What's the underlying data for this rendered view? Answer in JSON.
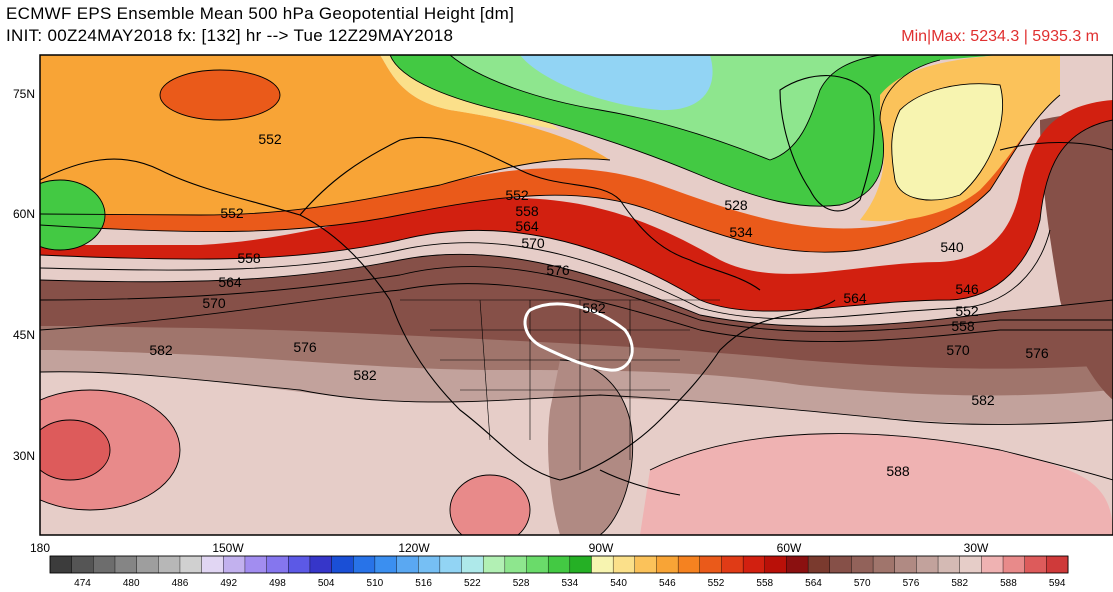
{
  "header": {
    "title_line1": "ECMWF EPS Ensemble Mean 500 hPa Geopotential Height [dm]",
    "title_line2": "INIT: 00Z24MAY2018 fx: [132] hr --> Tue 12Z29MAY2018",
    "minmax": "Min|Max: 5234.3 | 5935.3 m"
  },
  "map": {
    "lon_labels": [
      "180",
      "150W",
      "120W",
      "90W",
      "60W",
      "30W"
    ],
    "lat_labels": [
      "75N",
      "60N",
      "45N",
      "30N"
    ],
    "contour_labels": [
      "552",
      "552",
      "558",
      "564",
      "570",
      "582",
      "576",
      "582",
      "552",
      "558",
      "564",
      "570",
      "576",
      "582",
      "528",
      "534",
      "540",
      "546",
      "552",
      "558",
      "564",
      "570",
      "576",
      "582",
      "588"
    ]
  },
  "colorbar": {
    "labels": [
      "474",
      "480",
      "486",
      "492",
      "498",
      "504",
      "510",
      "516",
      "522",
      "528",
      "534",
      "540",
      "546",
      "552",
      "558",
      "564",
      "570",
      "576",
      "582",
      "588",
      "594"
    ],
    "colors": [
      "#3c3c3c",
      "#555555",
      "#6d6d6d",
      "#858585",
      "#9e9e9e",
      "#b7b7b7",
      "#d0d0d0",
      "#e1d6f3",
      "#c2b1ee",
      "#a28df0",
      "#8576ee",
      "#5c59e6",
      "#3636c9",
      "#1a4fd6",
      "#2873e8",
      "#3b8ff0",
      "#5aa8f2",
      "#76bff4",
      "#92d4f4",
      "#aee9ea",
      "#b2f0b4",
      "#8ee68e",
      "#6adb6a",
      "#43c943",
      "#25b025",
      "#f7f4b0",
      "#fbe08a",
      "#fbc25a",
      "#f8a436",
      "#f58220",
      "#ea5a1a",
      "#e03b16",
      "#d22010",
      "#b91008",
      "#8b1010",
      "#7a3a2e",
      "#865048",
      "#92625a",
      "#a0756c",
      "#b08a83",
      "#c2a29c",
      "#d4bab4",
      "#e6cdc8",
      "#efb2b2",
      "#e88a8a",
      "#dd5b5b",
      "#cf3a3a"
    ]
  }
}
